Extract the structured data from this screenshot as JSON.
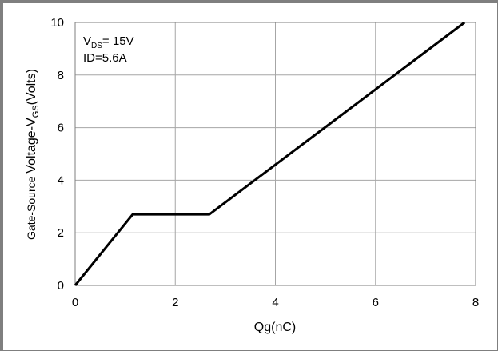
{
  "chart_data": {
    "type": "line",
    "xlabel": "Qg(nC)",
    "ylabel": {
      "part1": "Gate-Source ",
      "part2": "Voltage-V",
      "sub": "GS",
      "part3": "(Volts)"
    },
    "xlim": [
      0,
      8
    ],
    "ylim": [
      0,
      10
    ],
    "x_ticks": [
      0,
      2,
      4,
      6,
      8
    ],
    "y_ticks": [
      0,
      2,
      4,
      6,
      8,
      10
    ],
    "grid": true,
    "series": [
      {
        "x": [
          0,
          1.15,
          2.68,
          7.78
        ],
        "y": [
          0,
          2.7,
          2.7,
          10
        ],
        "color": "#000000"
      }
    ],
    "annotations": {
      "line1_main": "V",
      "line1_sub": "DS",
      "line1_rest": "= 15V",
      "line2": "ID=5.6A"
    }
  }
}
